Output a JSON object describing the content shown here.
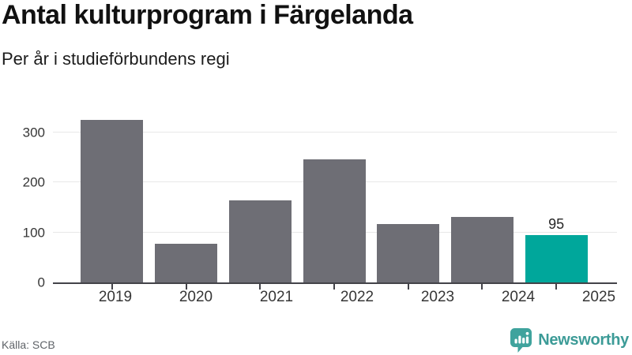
{
  "header": {
    "title": "Antal kulturprogram i Färgelanda",
    "subtitle": "Per år i studieförbundens regi"
  },
  "chart_data": {
    "type": "bar",
    "title": "Antal kulturprogram i Färgelanda",
    "subtitle": "Per år i studieförbundens regi",
    "xlabel": "",
    "ylabel": "",
    "categories": [
      "2019",
      "2020",
      "2021",
      "2022",
      "2023",
      "2024",
      "2025"
    ],
    "values": [
      325,
      77,
      164,
      246,
      117,
      131,
      95
    ],
    "point_labels": [
      "",
      "",
      "",
      "",
      "",
      "",
      "95"
    ],
    "highlight_index": 6,
    "yticks": [
      0,
      100,
      200,
      300
    ],
    "ylim": [
      0,
      360
    ],
    "grid": true,
    "legend": false,
    "colors": {
      "bar": "#6e6e75",
      "highlight": "#00a79b",
      "gridline": "#e8e8e8",
      "axis": "#434349"
    }
  },
  "footer": {
    "source": "Källa: SCB",
    "brand": "Newsworthy",
    "brand_color": "#3c9b97",
    "icons": {
      "logo": "newsworthy-bar-chart-bubble-icon"
    }
  }
}
